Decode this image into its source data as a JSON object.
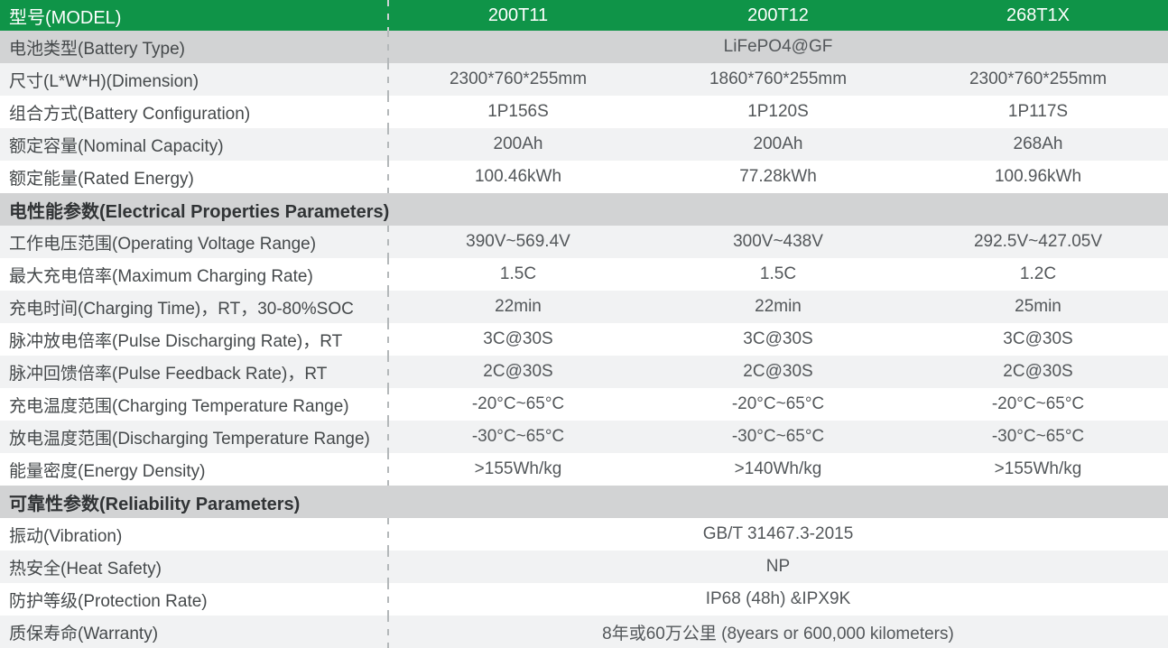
{
  "colors": {
    "header_green": "#0F9448",
    "section_gray": "#D2D3D4",
    "row_light": "#F1F2F3",
    "row_white": "#FFFFFF",
    "divider_dash_gray": "#B4B8BA",
    "label_text": "#45494B",
    "value_text": "#53575A",
    "header_text": "#FFFFFF"
  },
  "table": {
    "header": {
      "label": "型号(MODEL)",
      "models": [
        "200T11",
        "200T12",
        "268T1X"
      ]
    },
    "rows": [
      {
        "type": "span",
        "label": "电池类型(Battery Type)",
        "value": "LiFePO4@GF"
      },
      {
        "type": "data",
        "label": "尺寸(L*W*H)(Dimension)",
        "values": [
          "2300*760*255mm",
          "1860*760*255mm",
          "2300*760*255mm"
        ]
      },
      {
        "type": "data",
        "label": "组合方式(Battery Configuration)",
        "values": [
          "1P156S",
          "1P120S",
          "1P117S"
        ]
      },
      {
        "type": "data",
        "label": "额定容量(Nominal Capacity)",
        "values": [
          "200Ah",
          "200Ah",
          "268Ah"
        ]
      },
      {
        "type": "data",
        "label": "额定能量(Rated Energy)",
        "values": [
          "100.46kWh",
          "77.28kWh",
          "100.96kWh"
        ]
      },
      {
        "type": "section",
        "label": "电性能参数(Electrical Properties Parameters)"
      },
      {
        "type": "data",
        "label": "工作电压范围(Operating Voltage Range)",
        "values": [
          "390V~569.4V",
          "300V~438V",
          "292.5V~427.05V"
        ]
      },
      {
        "type": "data",
        "label": "最大充电倍率(Maximum Charging Rate)",
        "values": [
          "1.5C",
          "1.5C",
          "1.2C"
        ]
      },
      {
        "type": "data",
        "label": "充电时间(Charging Time)，RT，30-80%SOC",
        "values": [
          "22min",
          "22min",
          "25min"
        ]
      },
      {
        "type": "data",
        "label": "脉冲放电倍率(Pulse Discharging Rate)，RT",
        "values": [
          "3C@30S",
          "3C@30S",
          "3C@30S"
        ]
      },
      {
        "type": "data",
        "label": "脉冲回馈倍率(Pulse Feedback Rate)，RT",
        "values": [
          "2C@30S",
          "2C@30S",
          "2C@30S"
        ]
      },
      {
        "type": "data",
        "label": "充电温度范围(Charging Temperature Range)",
        "values": [
          "-20°C~65°C",
          "-20°C~65°C",
          "-20°C~65°C"
        ]
      },
      {
        "type": "data",
        "label": "放电温度范围(Discharging Temperature Range)",
        "values": [
          "-30°C~65°C",
          "-30°C~65°C",
          "-30°C~65°C"
        ]
      },
      {
        "type": "data",
        "label": "能量密度(Energy Density)",
        "values": [
          ">155Wh/kg",
          ">140Wh/kg",
          ">155Wh/kg"
        ]
      },
      {
        "type": "section",
        "label": "可靠性参数(Reliability Parameters)"
      },
      {
        "type": "span",
        "label": "振动(Vibration)",
        "value": "GB/T 31467.3-2015"
      },
      {
        "type": "span",
        "label": "热安全(Heat Safety)",
        "value": "NP"
      },
      {
        "type": "span",
        "label": "防护等级(Protection Rate)",
        "value": "IP68 (48h) &IPX9K"
      },
      {
        "type": "span",
        "label": "质保寿命(Warranty)",
        "value": "8年或60万公里 (8years or 600,000 kilometers)"
      }
    ]
  }
}
